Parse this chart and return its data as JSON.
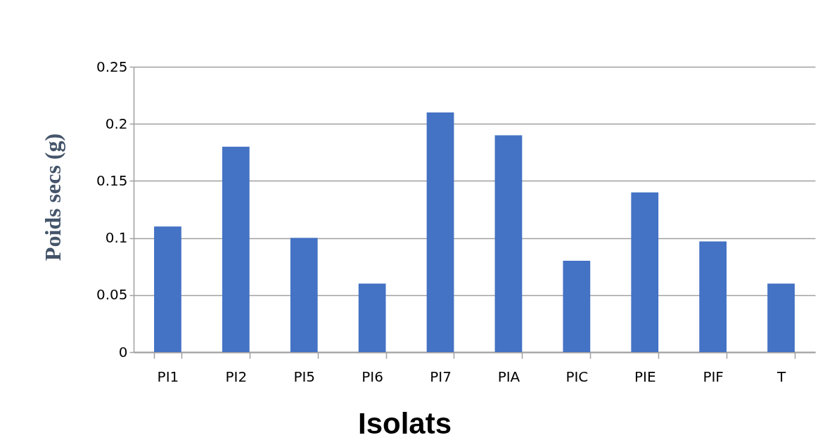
{
  "chart_data": {
    "type": "bar",
    "xlabel": "Isolats",
    "ylabel": "Poids secs (g)",
    "categories": [
      "PI1",
      "PI2",
      "PI5",
      "PI6",
      "PI7",
      "PIA",
      "PIC",
      "PIE",
      "PIF",
      "T"
    ],
    "values": [
      0.11,
      0.18,
      0.1,
      0.06,
      0.21,
      0.19,
      0.08,
      0.14,
      0.097,
      0.06
    ],
    "color": "#4472c4",
    "ylim": [
      0,
      0.25
    ],
    "yticks": [
      0,
      0.05,
      0.1,
      0.15,
      0.2,
      0.25
    ],
    "grid": "y"
  }
}
